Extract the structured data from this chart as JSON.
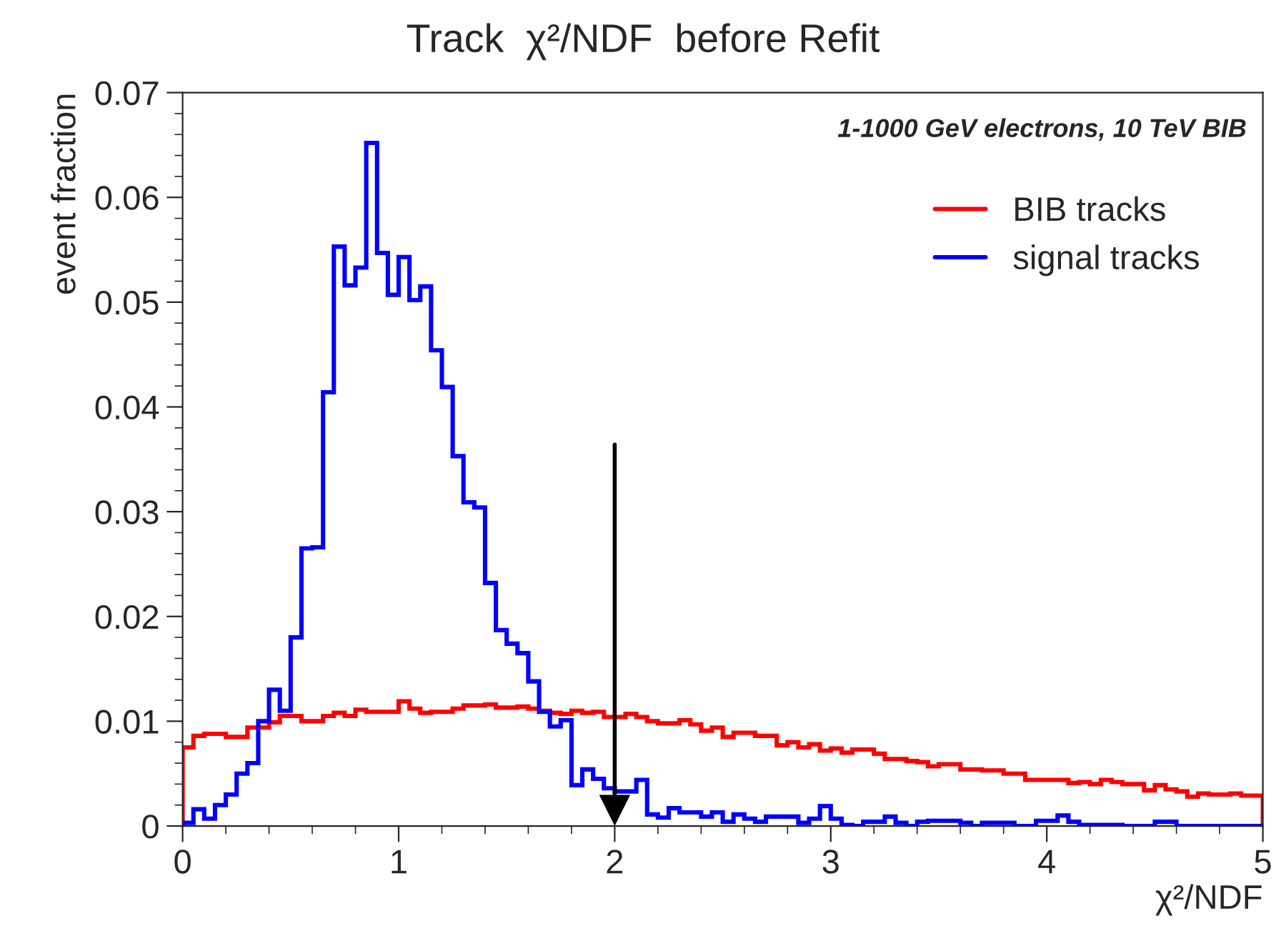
{
  "chart_data": {
    "type": "histogram",
    "title": "Track  χ²/NDF  before Refit",
    "xlabel": "χ²/NDF",
    "ylabel": "event fraction",
    "annotations": [
      "1-1000 GeV electrons, 10 TeV BIB"
    ],
    "bins": [
      0,
      0.05,
      0.1,
      0.15,
      0.2,
      0.25,
      0.3,
      0.35,
      0.4,
      0.45,
      0.5,
      0.55,
      0.6,
      0.65,
      0.7,
      0.75,
      0.8,
      0.85,
      0.9,
      0.95,
      1,
      1.05,
      1.1,
      1.15,
      1.2,
      1.25,
      1.3,
      1.35,
      1.4,
      1.45,
      1.5,
      1.55,
      1.6,
      1.65,
      1.7,
      1.75,
      1.8,
      1.85,
      1.9,
      1.95,
      2,
      2.05,
      2.1,
      2.15,
      2.2,
      2.25,
      2.3,
      2.35,
      2.4,
      2.45,
      2.5,
      2.55,
      2.6,
      2.65,
      2.7,
      2.75,
      2.8,
      2.85,
      2.9,
      2.95,
      3,
      3.05,
      3.1,
      3.15,
      3.2,
      3.25,
      3.3,
      3.35,
      3.4,
      3.45,
      3.5,
      3.55,
      3.6,
      3.65,
      3.7,
      3.75,
      3.8,
      3.85,
      3.9,
      3.95,
      4,
      4.05,
      4.1,
      4.15,
      4.2,
      4.25,
      4.3,
      4.35,
      4.4,
      4.45,
      4.5,
      4.55,
      4.6,
      4.65,
      4.7,
      4.75,
      4.8,
      4.85,
      4.9,
      4.95,
      5
    ],
    "series": [
      {
        "name": "BIB tracks",
        "color": "#ff0000",
        "values": [
          0.0075,
          0.0086,
          0.0088,
          0.0088,
          0.0085,
          0.0085,
          0.0094,
          0.0094,
          0.0099,
          0.0105,
          0.0105,
          0.01,
          0.01,
          0.0105,
          0.0108,
          0.0105,
          0.0111,
          0.0109,
          0.0109,
          0.0109,
          0.0119,
          0.0112,
          0.0108,
          0.0109,
          0.0109,
          0.0112,
          0.0115,
          0.0115,
          0.0116,
          0.0113,
          0.0113,
          0.0114,
          0.0112,
          0.011,
          0.0108,
          0.0107,
          0.011,
          0.0108,
          0.0109,
          0.0104,
          0.0104,
          0.0107,
          0.0104,
          0.01,
          0.0098,
          0.0098,
          0.0101,
          0.0097,
          0.0091,
          0.0094,
          0.0085,
          0.0089,
          0.0089,
          0.0086,
          0.0086,
          0.0077,
          0.008,
          0.0075,
          0.0078,
          0.0072,
          0.0074,
          0.007,
          0.0073,
          0.0073,
          0.0069,
          0.0064,
          0.0064,
          0.0062,
          0.0061,
          0.0057,
          0.0059,
          0.0059,
          0.0054,
          0.0054,
          0.0053,
          0.0053,
          0.005,
          0.005,
          0.0044,
          0.0044,
          0.0044,
          0.0044,
          0.0041,
          0.0042,
          0.004,
          0.0044,
          0.0042,
          0.004,
          0.004,
          0.0034,
          0.0039,
          0.0035,
          0.0033,
          0.0028,
          0.0031,
          0.003,
          0.003,
          0.0031,
          0.0029,
          0.0029
        ]
      },
      {
        "name": "signal tracks",
        "color": "#0000ff",
        "values": [
          0.0003,
          0.0016,
          0.0007,
          0.002,
          0.003,
          0.005,
          0.006,
          0.01,
          0.013,
          0.011,
          0.018,
          0.0265,
          0.0266,
          0.0414,
          0.0553,
          0.0516,
          0.0533,
          0.0652,
          0.0547,
          0.0507,
          0.0543,
          0.0502,
          0.0515,
          0.0454,
          0.0419,
          0.0353,
          0.0309,
          0.0304,
          0.0232,
          0.0187,
          0.0174,
          0.0165,
          0.0138,
          0.0109,
          0.0095,
          0.0101,
          0.0039,
          0.0054,
          0.0045,
          0.0036,
          0.0033,
          0.0033,
          0.0044,
          0.0011,
          0.0008,
          0.0017,
          0.0013,
          0.0013,
          0.0009,
          0.0013,
          0.0004,
          0.0011,
          0.0007,
          0.0004,
          0.0009,
          0.0009,
          0.0009,
          0.0003,
          0.0007,
          0.0019,
          0.0007,
          0.0001,
          0,
          0.0004,
          0.0004,
          0.0009,
          0.0003,
          0,
          0.0004,
          0.0005,
          0.0005,
          0.0005,
          0.0003,
          0,
          0.0003,
          0.0003,
          0.0003,
          0,
          0,
          0.0005,
          0.0005,
          0.001,
          0.0004,
          0.0001,
          0.0001,
          0.0001,
          0.0001,
          0,
          0,
          0,
          0.0004,
          0.0004,
          0,
          0,
          0,
          0,
          0,
          0,
          0,
          0
        ]
      }
    ],
    "xlim": [
      0,
      5
    ],
    "xticks": [
      0,
      1,
      2,
      3,
      4,
      5
    ],
    "ylim": [
      0,
      0.07
    ],
    "yticks": [
      0,
      0.01,
      0.02,
      0.03,
      0.04,
      0.05,
      0.06,
      0.07
    ],
    "ref_lines": [
      {
        "axis": "x",
        "value": 2,
        "color": "#000000"
      }
    ],
    "grid": false,
    "legend": "top right"
  }
}
